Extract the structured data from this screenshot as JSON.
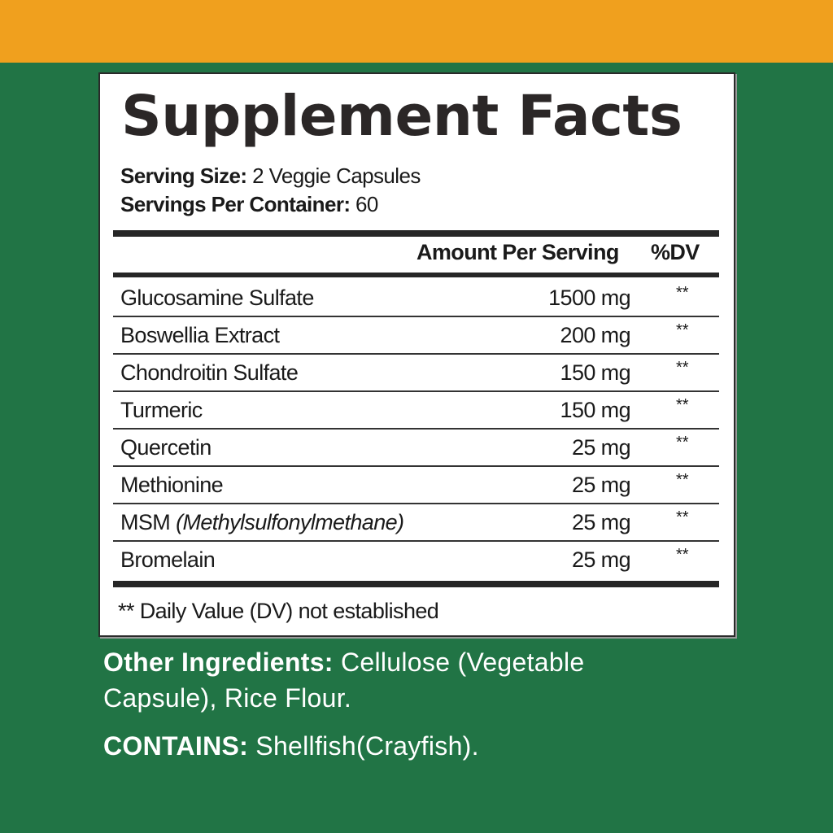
{
  "colors": {
    "top_bar": "#F0A01E",
    "background": "#217445",
    "panel": "#FFFFFF",
    "text": "#1A1A1A"
  },
  "title": "Supplement Facts",
  "serving_size": {
    "label": "Serving Size:",
    "value": "2 Veggie Capsules"
  },
  "servings_per_container": {
    "label": "Servings Per Container:",
    "value": "60"
  },
  "table": {
    "headers": {
      "amount": "Amount Per Serving",
      "dv": "%DV"
    },
    "rows": [
      {
        "name": "Glucosamine Sulfate",
        "note": "",
        "amount": "1500 mg",
        "dv": "**"
      },
      {
        "name": "Boswellia Extract",
        "note": "",
        "amount": "200 mg",
        "dv": "**"
      },
      {
        "name": "Chondroitin Sulfate",
        "note": "",
        "amount": "150 mg",
        "dv": "**"
      },
      {
        "name": "Turmeric",
        "note": "",
        "amount": "150 mg",
        "dv": "**"
      },
      {
        "name": "Quercetin",
        "note": "",
        "amount": "25 mg",
        "dv": "**"
      },
      {
        "name": "Methionine",
        "note": "",
        "amount": "25 mg",
        "dv": "**"
      },
      {
        "name": "MSM",
        "note": "(Methylsulfonylmethane)",
        "amount": "25 mg",
        "dv": "**"
      },
      {
        "name": "Bromelain",
        "note": "",
        "amount": "25 mg",
        "dv": "**"
      }
    ],
    "footnote": "** Daily Value (DV) not established"
  },
  "other_ingredients": {
    "label": "Other Ingredients:",
    "line1": "Cellulose (Vegetable",
    "line2": "Capsule), Rice Flour."
  },
  "contains": {
    "label": "CONTAINS:",
    "value": "Shellfish(Crayfish)."
  }
}
